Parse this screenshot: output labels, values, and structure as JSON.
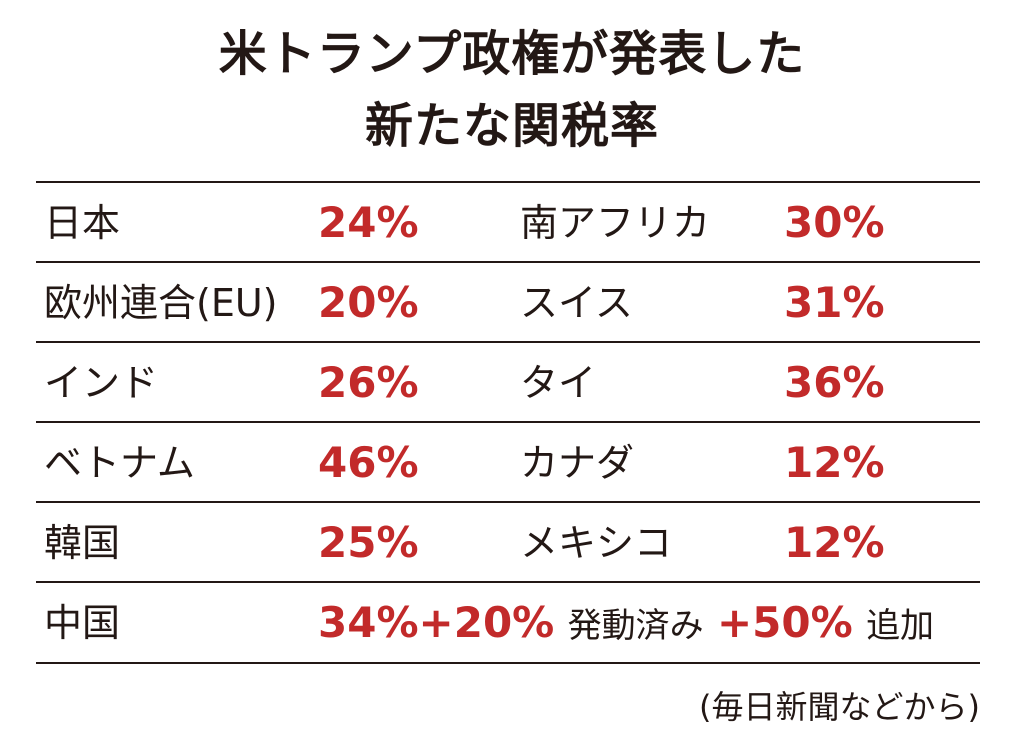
{
  "chart_data": {
    "type": "table",
    "title_lines": [
      "米トランプ政権が発表した",
      "新たな関税率"
    ],
    "rows": [
      [
        {
          "name": "日本",
          "rate": "24%"
        },
        {
          "name": "南アフリカ",
          "rate": "30%"
        }
      ],
      [
        {
          "name": "欧州連合(EU)",
          "rate": "20%"
        },
        {
          "name": "スイス",
          "rate": "31%"
        }
      ],
      [
        {
          "name": "インド",
          "rate": "26%"
        },
        {
          "name": "タイ",
          "rate": "36%"
        }
      ],
      [
        {
          "name": "ベトナム",
          "rate": "46%"
        },
        {
          "name": "カナダ",
          "rate": "12%"
        }
      ],
      [
        {
          "name": "韓国",
          "rate": "25%"
        },
        {
          "name": "メキシコ",
          "rate": "12%"
        }
      ]
    ],
    "china": {
      "name": "中国",
      "rate_base": "34%+20%",
      "note_active": "発動済み",
      "rate_add": "+50%",
      "note_add": "追加"
    },
    "source": "(毎日新聞などから)"
  },
  "colors": {
    "text": "#231815",
    "rate": "#c22a2a",
    "rule": "#231815"
  }
}
